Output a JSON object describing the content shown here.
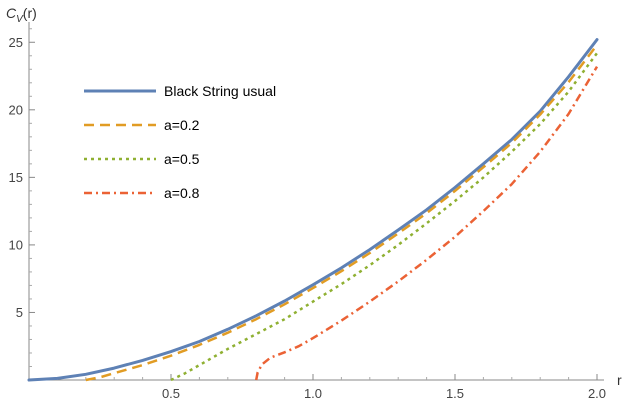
{
  "chart_data": {
    "type": "line",
    "ylabel_main": "C",
    "ylabel_sub": "V",
    "ylabel_suffix": "(r)",
    "xlabel": "r",
    "xlim": [
      0,
      2.0
    ],
    "ylim": [
      0,
      26.5
    ],
    "xticks_major": [
      0.5,
      1.0,
      1.5,
      2.0
    ],
    "xtick_labels": [
      "0.5",
      "1.0",
      "1.5",
      "2.0"
    ],
    "yticks_major": [
      5,
      10,
      15,
      20,
      25
    ],
    "ytick_labels": [
      "5",
      "10",
      "15",
      "20",
      "25"
    ],
    "legend_position": "top-left",
    "series": [
      {
        "name": "Black String usual",
        "color": "#5e81b5",
        "style": "solid",
        "x": [
          0,
          0.1,
          0.2,
          0.3,
          0.4,
          0.5,
          0.6,
          0.7,
          0.8,
          0.9,
          1.0,
          1.1,
          1.2,
          1.3,
          1.4,
          1.5,
          1.6,
          1.7,
          1.8,
          1.9,
          2.0
        ],
        "y": [
          0,
          0.12,
          0.42,
          0.88,
          1.45,
          2.1,
          2.85,
          3.75,
          4.75,
          5.85,
          7.05,
          8.3,
          9.65,
          11.1,
          12.6,
          14.25,
          16.0,
          17.8,
          19.9,
          22.45,
          25.2
        ]
      },
      {
        "name": "a=0.2",
        "color": "#e19c24",
        "style": "dashed",
        "x": [
          0.2,
          0.25,
          0.3,
          0.4,
          0.5,
          0.6,
          0.7,
          0.8,
          0.9,
          1.0,
          1.1,
          1.2,
          1.3,
          1.4,
          1.5,
          1.6,
          1.7,
          1.8,
          1.9,
          2.0
        ],
        "y": [
          0,
          0.2,
          0.5,
          1.1,
          1.8,
          2.6,
          3.5,
          4.5,
          5.6,
          6.8,
          8.05,
          9.4,
          10.85,
          12.35,
          14.0,
          15.75,
          17.55,
          19.65,
          22.05,
          24.8
        ]
      },
      {
        "name": "a=0.5",
        "color": "#8fb032",
        "style": "dotted",
        "x": [
          0.5,
          0.55,
          0.6,
          0.7,
          0.8,
          0.9,
          1.0,
          1.1,
          1.2,
          1.3,
          1.4,
          1.5,
          1.6,
          1.7,
          1.8,
          1.9,
          2.0
        ],
        "y": [
          0,
          0.5,
          1.1,
          2.3,
          3.4,
          4.5,
          5.8,
          7.1,
          8.5,
          10.0,
          11.6,
          13.25,
          15.0,
          16.9,
          18.95,
          21.35,
          24.2
        ]
      },
      {
        "name": "a=0.8",
        "color": "#eb6235",
        "style": "dashdot",
        "x": [
          0.8,
          0.805,
          0.82,
          0.85,
          0.9,
          0.95,
          1.0,
          1.1,
          1.2,
          1.3,
          1.4,
          1.5,
          1.6,
          1.7,
          1.8,
          1.9,
          2.0
        ],
        "y": [
          0,
          0.55,
          1.15,
          1.65,
          2.05,
          2.5,
          3.1,
          4.4,
          5.8,
          7.3,
          8.9,
          10.6,
          12.5,
          14.5,
          16.9,
          19.7,
          23.2
        ]
      }
    ]
  }
}
